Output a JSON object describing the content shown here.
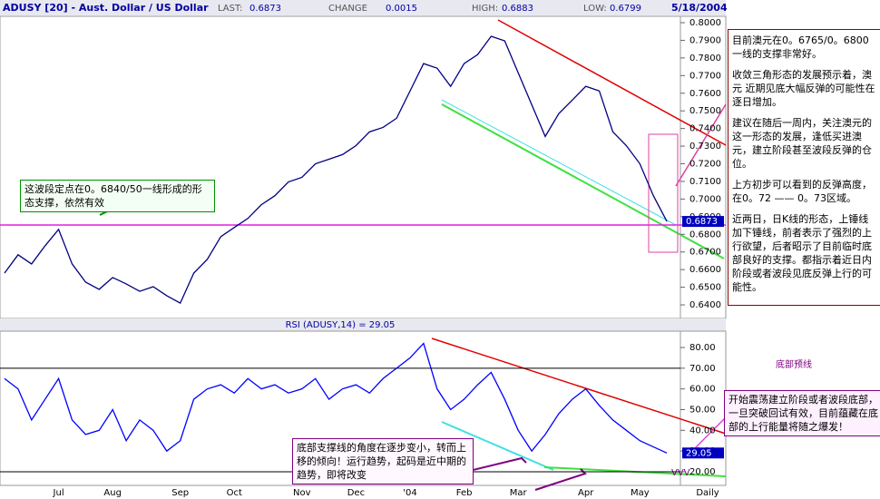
{
  "header": {
    "title": "ADUSY [20] - Aust. Dollar / US Dollar",
    "last_label": "LAST:",
    "last": "0.6873",
    "change_label": "CHANGE",
    "change": "0.0015",
    "high_label": "HIGH:",
    "high": "0.6883",
    "low_label": "LOW:",
    "low": "0.6799",
    "date": "5/18/2004"
  },
  "chart_data": [
    {
      "type": "line",
      "color": "#000080",
      "values": [
        0.658,
        0.6684,
        0.6632,
        0.6735,
        0.6828,
        0.6632,
        0.6529,
        0.6488,
        0.6555,
        0.6519,
        0.6477,
        0.6503,
        0.6452,
        0.641,
        0.658,
        0.6658,
        0.6787,
        0.6839,
        0.689,
        0.6968,
        0.7019,
        0.7097,
        0.7123,
        0.72,
        0.7226,
        0.7252,
        0.7303,
        0.7381,
        0.7406,
        0.7458,
        0.7613,
        0.7768,
        0.7742,
        0.7639,
        0.7768,
        0.7819,
        0.7923,
        0.7897,
        0.7716,
        0.7535,
        0.7355,
        0.7484,
        0.7561,
        0.7639,
        0.7613,
        0.7381,
        0.7303,
        0.72,
        0.7019,
        0.6873
      ],
      "ylim": [
        0.6323,
        0.8036
      ],
      "yticks": [
        {
          "value": 0.8,
          "label": "0.8000"
        },
        {
          "value": 0.79,
          "label": "0.7900"
        },
        {
          "value": 0.78,
          "label": "0.7800"
        },
        {
          "value": 0.77,
          "label": "0.7700"
        },
        {
          "value": 0.76,
          "label": "0.7600"
        },
        {
          "value": 0.75,
          "label": "0.7500"
        },
        {
          "value": 0.74,
          "label": "0.7400"
        },
        {
          "value": 0.73,
          "label": "0.7300"
        },
        {
          "value": 0.72,
          "label": "0.7200"
        },
        {
          "value": 0.71,
          "label": "0.7100"
        },
        {
          "value": 0.7,
          "label": "0.7000"
        },
        {
          "value": 0.69,
          "label": "0.6900"
        },
        {
          "value": 0.68,
          "label": "0.6800"
        },
        {
          "value": 0.67,
          "label": "0.6700"
        },
        {
          "value": 0.66,
          "label": "0.6600"
        },
        {
          "value": 0.65,
          "label": "0.6500"
        },
        {
          "value": 0.64,
          "label": "0.6400"
        }
      ]
    },
    {
      "type": "line",
      "title": "RSI (ADUSY,14) = 29.05",
      "color": "#0000ff",
      "categories": [
        null,
        null,
        null,
        null,
        "Jul",
        null,
        null,
        null,
        "Aug",
        null,
        null,
        null,
        null,
        "Sep",
        null,
        null,
        null,
        "Oct",
        null,
        null,
        null,
        null,
        "Nov",
        null,
        null,
        null,
        "Dec",
        null,
        null,
        null,
        "'04",
        null,
        null,
        null,
        "Feb",
        null,
        null,
        null,
        "Mar",
        null,
        null,
        null,
        null,
        "Apr",
        null,
        null,
        null,
        "May",
        null,
        null
      ],
      "x_label": "Daily",
      "values": [
        65,
        60,
        45,
        55,
        65,
        45,
        38,
        40,
        50,
        35,
        45,
        40,
        30,
        35,
        55,
        60,
        62,
        58,
        65,
        60,
        62,
        58,
        60,
        65,
        55,
        60,
        62,
        58,
        65,
        70,
        75,
        82,
        60,
        50,
        55,
        62,
        68,
        55,
        40,
        30,
        38,
        48,
        55,
        60,
        52,
        45,
        40,
        35,
        32,
        29.05
      ],
      "ylim": [
        13.4,
        87.9
      ],
      "yticks": [
        {
          "value": 80,
          "label": "80.00"
        },
        {
          "value": 70,
          "label": "70.00"
        },
        {
          "value": 60,
          "label": "60.00"
        },
        {
          "value": 50,
          "label": "50.00"
        },
        {
          "value": 40,
          "label": "40.00"
        },
        {
          "value": 30,
          "label": "30.00"
        },
        {
          "value": 20,
          "label": "20.00"
        }
      ],
      "ref_lines": [
        70,
        20
      ]
    }
  ],
  "annotations": {
    "right_box": [
      "目前澳元在0。6765/0。6800一线的支撑非常好。",
      "收敛三角形态的发展预示着，澳元 近期见底大幅反弹的可能性在逐日增加。",
      "建议在随后一周内，关注澳元的这一形态的发展，逢低买进澳元，建立阶段甚至波段反弹的仓位。",
      "上方初步可以看到的反弹高度，在0。72 —— 0。73区域。",
      "近两日，日K线的形态，上锤线加下锤线，前者表示了强烈的上行欲望，后者昭示了目前临时底部良好的支撑。都指示着近日内阶段或者波段见底反弹上行的可能性。"
    ],
    "left_box": "这波段定点在0。6840/50一线形成的形态支撑，依然有效",
    "bottom_box": "底部支撑线的角度在逐步变小，转而上移的倾向！运行趋势，起码是近中期的趋势，即将改变",
    "purple_box": "开始震荡建立阶段或者波段底部，一旦突破回试有效，目前蕴藏在底部的上行能量将随之爆发！",
    "cloud": "底部预线",
    "vvv": "VVV"
  }
}
